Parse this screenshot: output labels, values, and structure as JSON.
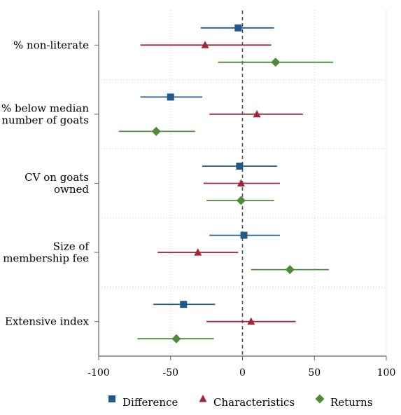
{
  "chart_data": {
    "type": "scatter",
    "subtype": "coefficient plot with confidence intervals (horizontal)",
    "title": "",
    "xlabel": "",
    "ylabel": "",
    "xlim": [
      -100,
      100
    ],
    "x_ticks": [
      -100,
      -50,
      0,
      50,
      100
    ],
    "x_tick_labels": [
      "-100",
      "-50",
      "0",
      "50",
      "100"
    ],
    "reference_line": {
      "x": 0,
      "style": "dashed",
      "color": "#555555"
    },
    "grid": {
      "vertical": true,
      "group_separators": true,
      "style": "dotted"
    },
    "legend_position": "bottom",
    "categories": [
      {
        "label_lines": [
          "% non-literate"
        ]
      },
      {
        "label_lines": [
          "% below median",
          "number of goats"
        ]
      },
      {
        "label_lines": [
          "CV on goats",
          "owned"
        ]
      },
      {
        "label_lines": [
          "Size of",
          "membership fee"
        ]
      },
      {
        "label_lines": [
          "Extensive index"
        ]
      }
    ],
    "series": [
      {
        "name": "Difference",
        "marker": "square",
        "color": "#1f5a8c",
        "points": [
          {
            "estimate": -3,
            "ci": [
              -29,
              22
            ]
          },
          {
            "estimate": -50,
            "ci": [
              -71,
              -28
            ]
          },
          {
            "estimate": -2,
            "ci": [
              -28,
              24
            ]
          },
          {
            "estimate": 1,
            "ci": [
              -23,
              26
            ]
          },
          {
            "estimate": -41,
            "ci": [
              -62,
              -19
            ]
          }
        ]
      },
      {
        "name": "Characteristics",
        "marker": "triangle",
        "color": "#a3263a",
        "points": [
          {
            "estimate": -26,
            "ci": [
              -71,
              20
            ]
          },
          {
            "estimate": 10,
            "ci": [
              -23,
              42
            ]
          },
          {
            "estimate": -1,
            "ci": [
              -27,
              26
            ]
          },
          {
            "estimate": -31,
            "ci": [
              -59,
              -3
            ]
          },
          {
            "estimate": 6,
            "ci": [
              -25,
              37
            ]
          }
        ]
      },
      {
        "name": "Returns",
        "marker": "diamond",
        "color": "#4c8b37",
        "points": [
          {
            "estimate": 23,
            "ci": [
              -17,
              63
            ]
          },
          {
            "estimate": -60,
            "ci": [
              -86,
              -33
            ]
          },
          {
            "estimate": -1,
            "ci": [
              -25,
              22
            ]
          },
          {
            "estimate": 33,
            "ci": [
              6,
              60
            ]
          },
          {
            "estimate": -46,
            "ci": [
              -73,
              -20
            ]
          }
        ]
      }
    ]
  }
}
